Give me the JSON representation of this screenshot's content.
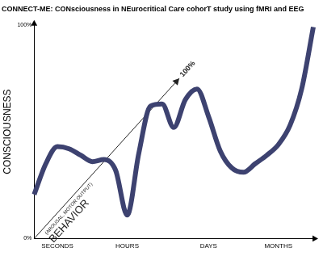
{
  "chart_data": {
    "type": "line",
    "title": "CONNECT-ME: CONsciousness in NEurocritical Care cohorT study using fMRI and EEG",
    "y_label": "CONSCIOUSNESS",
    "categories": [
      null,
      null,
      "SECONDS",
      null,
      null,
      null,
      null,
      null,
      "HOURS",
      null,
      null,
      null,
      null,
      null,
      null,
      "DAYS",
      null,
      null,
      null,
      null,
      null,
      "MONTHS",
      null,
      null,
      null
    ],
    "values": [
      20.6,
      35,
      43,
      42,
      39,
      36,
      37,
      32,
      11,
      40,
      62,
      63,
      52,
      65,
      70,
      57,
      41,
      33,
      31,
      35,
      39,
      44,
      53,
      70,
      99
    ],
    "color": "#3d4270",
    "ylim": [
      0,
      100
    ],
    "yticks": [
      {
        "value": 0,
        "label": "0%"
      },
      {
        "value": 100,
        "label": "100%"
      }
    ],
    "grid": false,
    "annotations": [
      {
        "text": "BEHAVIOR",
        "subtext": "(AROUSAL, MOTOR OUTPUT)",
        "end_label": "100%"
      }
    ]
  }
}
